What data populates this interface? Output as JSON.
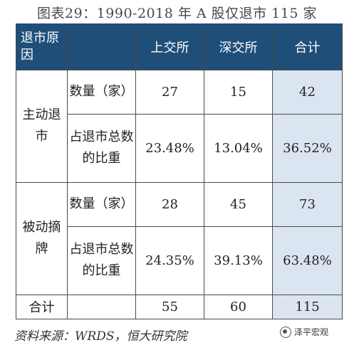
{
  "title": "图表29：1990-2018 年 A 股仅退市 115 家",
  "header": {
    "reason": "退市原因",
    "c1": "上交所",
    "c2": "深交所",
    "c3": "合计"
  },
  "groups": [
    {
      "label": "主动退市",
      "rows": [
        {
          "metric": "数量（家）",
          "sse": "27",
          "szse": "15",
          "total": "42"
        },
        {
          "metric": "占退市总数的比重",
          "sse": "23.48%",
          "szse": "13.04%",
          "total": "36.52%"
        }
      ]
    },
    {
      "label": "被动摘牌",
      "rows": [
        {
          "metric": "数量（家）",
          "sse": "28",
          "szse": "45",
          "total": "73"
        },
        {
          "metric": "占退市总数的比重",
          "sse": "24.35%",
          "szse": "39.13%",
          "total": "63.48%"
        }
      ]
    }
  ],
  "total_row": {
    "label": "合计",
    "sse": "55",
    "szse": "60",
    "total": "115"
  },
  "footer": "资料来源：WRDS，恒大研究院",
  "logo": "泽平宏观",
  "icons": {
    "logo": "wechat-logo-icon"
  },
  "colors": {
    "header_bg": "#1f4e79",
    "highlight": "#dbe5f1"
  }
}
